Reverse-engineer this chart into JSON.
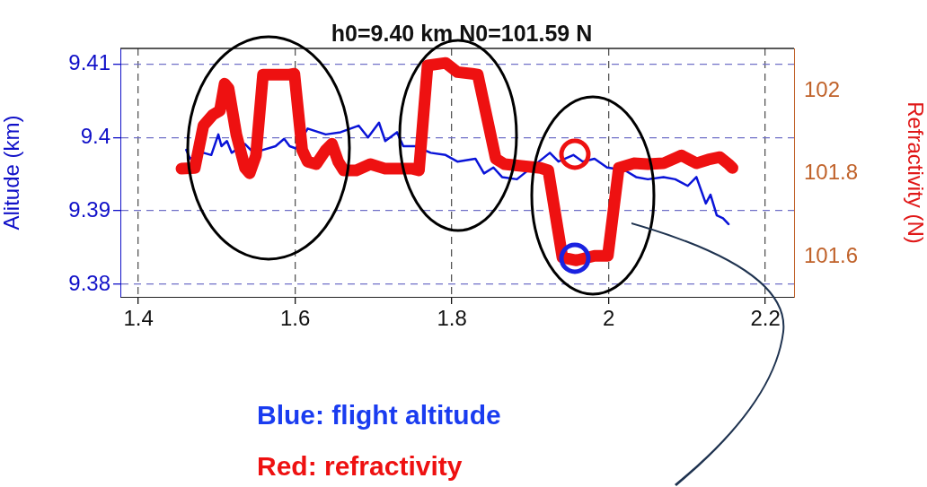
{
  "chart_data": {
    "type": "line",
    "title": "h0=9.40 km N0=101.59 N",
    "ylabel": "Alitude (km)",
    "y2label": "Refractivity (N)",
    "xlim": [
      1.377,
      2.2366
    ],
    "xticks": [
      1.4,
      1.6,
      1.8,
      2,
      2.2
    ],
    "ylim": [
      9.3783,
      9.4121
    ],
    "yticks": [
      9.38,
      9.39,
      9.4,
      9.41
    ],
    "y2lim": [
      101.503,
      102.102
    ],
    "y2ticks": [
      101.6,
      101.8,
      102
    ],
    "grid": true,
    "annotations": [
      "Blue: flight altitude",
      "Red: refractivity"
    ],
    "series": [
      {
        "color": "#0a14d8",
        "x": [
          1.461,
          1.466,
          1.473,
          1.483,
          1.493,
          1.502,
          1.506,
          1.513,
          1.519,
          1.536,
          1.547,
          1.559,
          1.575,
          1.586,
          1.593,
          1.601,
          1.616,
          1.639,
          1.658,
          1.681,
          1.693,
          1.707,
          1.715,
          1.73,
          1.738,
          1.753,
          1.773,
          1.792,
          1.807,
          1.83,
          1.841,
          1.853,
          1.864,
          1.883,
          1.898,
          1.913,
          1.925,
          1.936,
          1.955,
          1.967,
          1.982,
          1.998,
          2.021,
          2.035,
          2.05,
          2.07,
          2.085,
          2.101,
          2.112,
          2.124,
          2.13,
          2.138,
          2.146,
          2.153
        ],
        "values": [
          9.3983,
          9.3971,
          null,
          9.3979,
          9.3976,
          9.4004,
          9.3988,
          9.3995,
          9.3979,
          9.3991,
          9.3979,
          9.3983,
          9.3988,
          9.3998,
          9.3988,
          9.3985,
          9.4012,
          9.4004,
          9.4007,
          9.4016,
          9.4,
          9.402,
          9.3995,
          9.4007,
          9.3988,
          9.3988,
          9.3979,
          9.3976,
          9.3967,
          9.3971,
          9.3951,
          9.3959,
          9.3946,
          9.3943,
          null,
          null,
          9.3979,
          9.3967,
          9.3976,
          9.3967,
          9.3971,
          9.3959,
          9.3955,
          9.3946,
          9.3943,
          9.3946,
          9.3943,
          9.3934,
          9.3946,
          9.391,
          9.3922,
          9.3894,
          9.389,
          9.3882
        ]
      },
      {
        "color": "#ee1111",
        "axis": "y2",
        "x": [
          1.455,
          1.472,
          1.483,
          1.495,
          1.504,
          1.51,
          1.515,
          1.525,
          1.536,
          1.542,
          1.55,
          1.559,
          1.593,
          1.599,
          1.609,
          1.616,
          1.627,
          1.639,
          1.647,
          1.655,
          1.662,
          1.678,
          1.696,
          1.715,
          1.75,
          1.758,
          1.769,
          1.792,
          1.807,
          1.826,
          1.833,
          1.856,
          1.867,
          1.913,
          1.923,
          1.941,
          1.959,
          1.982,
          1.999,
          2.013,
          2.032,
          2.05,
          2.07,
          2.093,
          2.112,
          2.127,
          2.142,
          2.153,
          2.158
        ],
        "values": [
          101.812,
          101.814,
          101.916,
          101.942,
          101.952,
          102.017,
          102.006,
          101.894,
          101.814,
          101.801,
          101.844,
          102.039,
          102.039,
          102.041,
          101.857,
          101.829,
          101.823,
          101.857,
          101.872,
          101.829,
          101.808,
          101.808,
          101.823,
          101.812,
          101.812,
          101.808,
          102.061,
          102.067,
          102.045,
          102.041,
          102.039,
          101.836,
          101.823,
          101.814,
          101.808,
          101.598,
          101.591,
          101.602,
          101.602,
          101.814,
          101.825,
          101.823,
          101.825,
          101.844,
          101.825,
          101.834,
          101.84,
          101.823,
          101.814
        ]
      }
    ]
  }
}
